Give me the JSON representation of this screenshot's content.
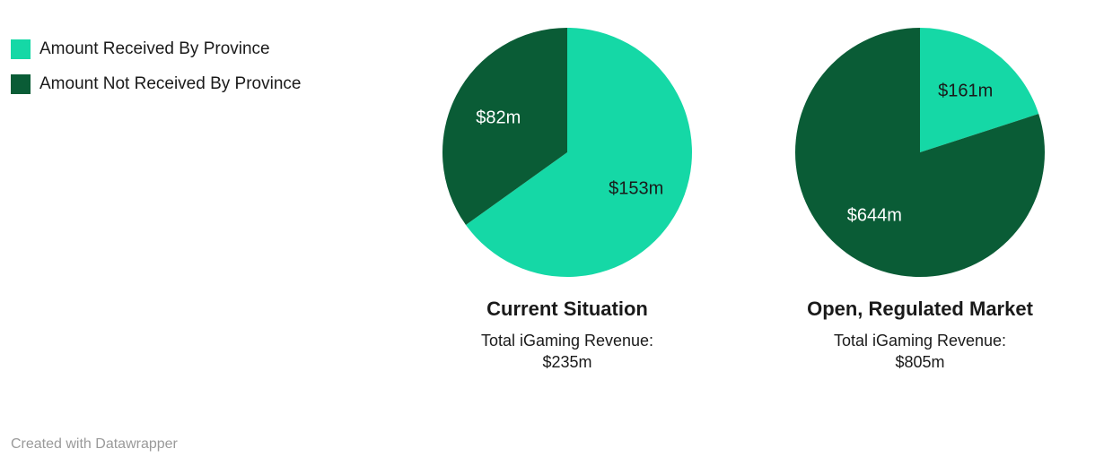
{
  "legend": {
    "items": [
      {
        "label": "Amount Received By Province",
        "color": "#15d8a6"
      },
      {
        "label": "Amount Not Received By Province",
        "color": "#0a5c36"
      }
    ]
  },
  "chart_data": [
    {
      "type": "pie",
      "title": "Current Situation",
      "subtitle": "Total iGaming Revenue:",
      "total": "$235m",
      "start_angle": 0,
      "legend_position": "top-left",
      "slices": [
        {
          "name": "Amount Received By Province",
          "value": 153,
          "label": "$153m",
          "color": "#15d8a6",
          "label_color": "#1a1a1a"
        },
        {
          "name": "Amount Not Received By Province",
          "value": 82,
          "label": "$82m",
          "color": "#0a5c36",
          "label_color": "#ffffff"
        }
      ]
    },
    {
      "type": "pie",
      "title": "Open, Regulated Market",
      "subtitle": "Total iGaming Revenue:",
      "total": "$805m",
      "start_angle": 0,
      "legend_position": "top-left",
      "slices": [
        {
          "name": "Amount Received By Province",
          "value": 161,
          "label": "$161m",
          "color": "#15d8a6",
          "label_color": "#1a1a1a"
        },
        {
          "name": "Amount Not Received By Province",
          "value": 644,
          "label": "$644m",
          "color": "#0a5c36",
          "label_color": "#ffffff"
        }
      ]
    }
  ],
  "footer": {
    "credit": "Created with Datawrapper"
  }
}
